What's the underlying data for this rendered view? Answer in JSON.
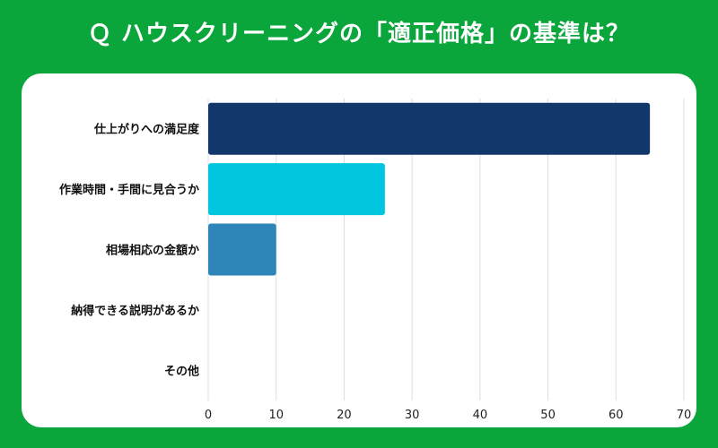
{
  "title": "Ｑ ハウスクリーニングの「適正価格」の基準は？",
  "colors": {
    "background": "#0aa53b",
    "card": "#ffffff",
    "grid": "#dcdce8"
  },
  "chart_data": {
    "type": "bar",
    "orientation": "horizontal",
    "categories": [
      "仕上がりへの満足度",
      "作業時間・手間に見合うか",
      "相場相応の金額か",
      "納得できる説明があるか",
      "その他"
    ],
    "values": [
      65,
      26,
      10,
      0,
      0
    ],
    "bar_colors": [
      "#12386b",
      "#00c6e0",
      "#2e86b8",
      "#2e86b8",
      "#2e86b8"
    ],
    "xlim": [
      0,
      70
    ],
    "xticks": [
      0,
      10,
      20,
      30,
      40,
      50,
      60,
      70
    ],
    "grid": true,
    "legend": "none"
  }
}
